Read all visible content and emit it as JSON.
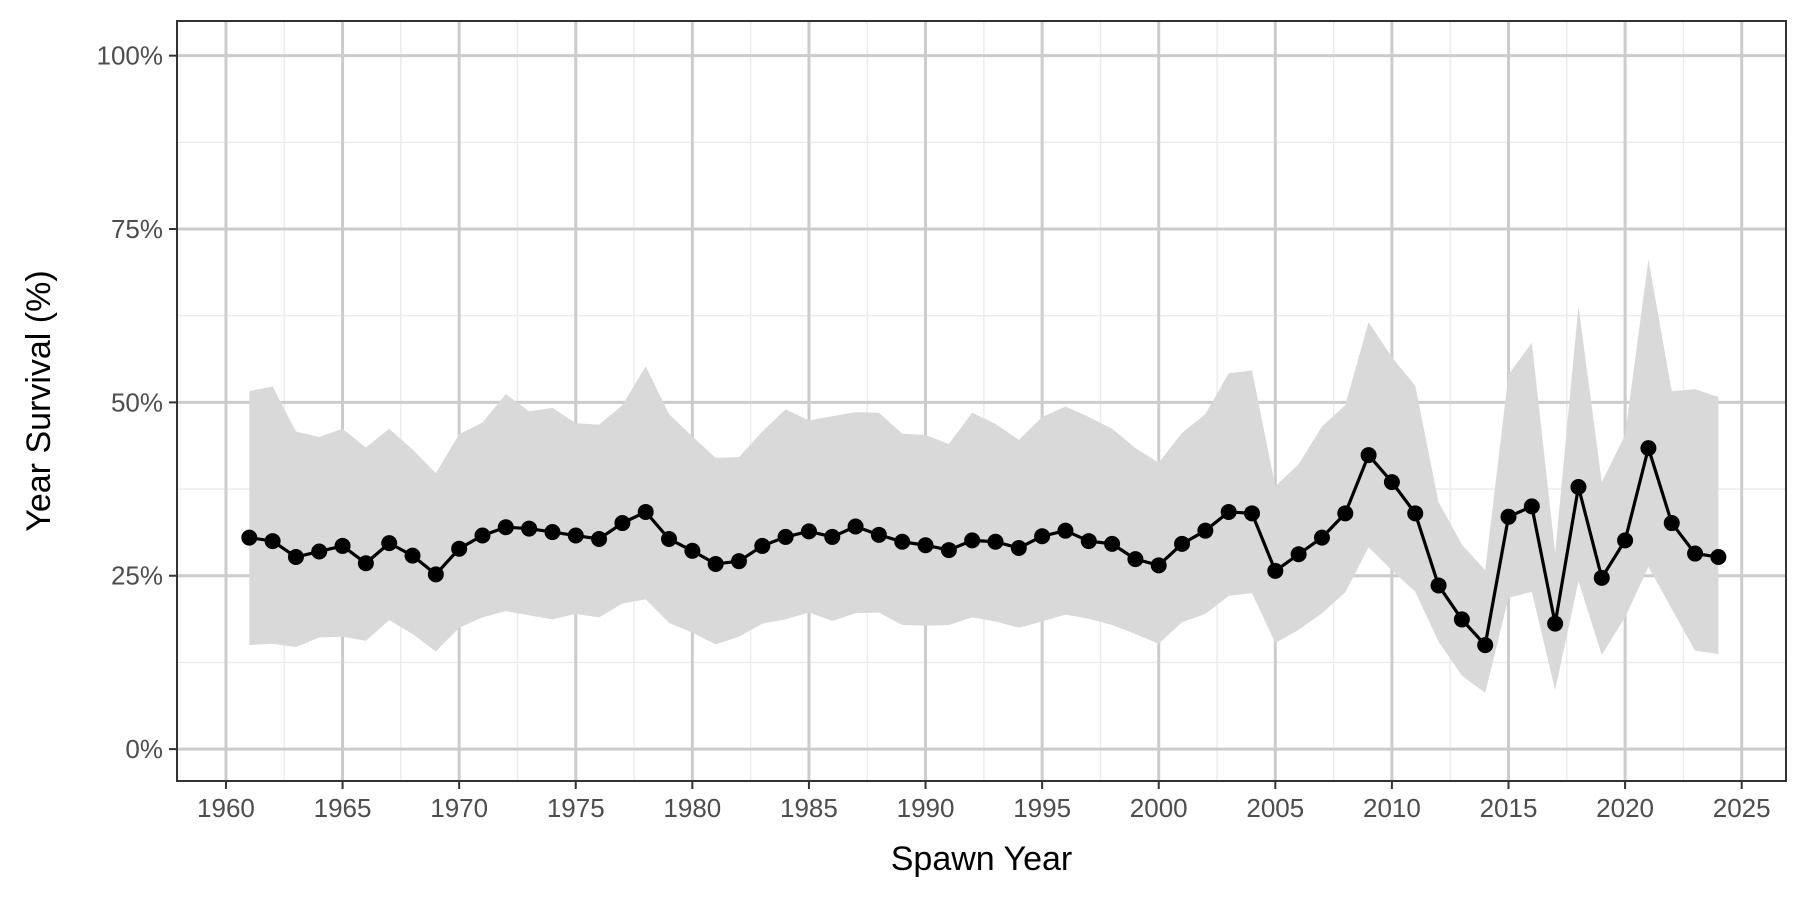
{
  "chart_data": {
    "type": "line",
    "title": "",
    "xlabel": "Spawn Year",
    "ylabel": "Year Survival (%)",
    "xlim": [
      1957.9,
      2026.9
    ],
    "ylim": [
      -4.6,
      105.0
    ],
    "x_ticks": [
      1960,
      1965,
      1970,
      1975,
      1980,
      1985,
      1990,
      1995,
      2000,
      2005,
      2010,
      2015,
      2020,
      2025
    ],
    "x_tick_labels": [
      "1960",
      "1965",
      "1970",
      "1975",
      "1980",
      "1985",
      "1990",
      "1995",
      "2000",
      "2005",
      "2010",
      "2015",
      "2020",
      "2025"
    ],
    "y_ticks": [
      0,
      25,
      50,
      75,
      100
    ],
    "y_tick_labels": [
      "0%",
      "25%",
      "50%",
      "75%",
      "100%"
    ],
    "grid": true,
    "legend": "none",
    "colors": {
      "line": "#000000",
      "ribbon": "#d9d9d9",
      "grid_major": "#cccccc",
      "grid_minor": "#ebebeb",
      "panel_border": "#333333"
    },
    "x": [
      1961,
      1962,
      1963,
      1964,
      1965,
      1966,
      1967,
      1968,
      1969,
      1970,
      1971,
      1972,
      1973,
      1974,
      1975,
      1976,
      1977,
      1978,
      1979,
      1980,
      1981,
      1982,
      1983,
      1984,
      1985,
      1986,
      1987,
      1988,
      1989,
      1990,
      1991,
      1992,
      1993,
      1994,
      1995,
      1996,
      1997,
      1998,
      1999,
      2000,
      2001,
      2002,
      2003,
      2004,
      2005,
      2006,
      2007,
      2008,
      2009,
      2010,
      2011,
      2012,
      2013,
      2014,
      2015,
      2016,
      2017,
      2018,
      2019,
      2020,
      2021,
      2022,
      2023,
      2024
    ],
    "series": [
      {
        "values": [
          30.5,
          30.0,
          27.7,
          28.5,
          29.3,
          26.8,
          29.7,
          27.9,
          25.2,
          28.9,
          30.8,
          32.0,
          31.8,
          31.3,
          30.8,
          30.3,
          32.6,
          34.2,
          30.3,
          28.6,
          26.7,
          27.1,
          29.3,
          30.6,
          31.4,
          30.6,
          32.1,
          30.9,
          29.9,
          29.4,
          28.7,
          30.1,
          29.9,
          29.0,
          30.7,
          31.5,
          30.0,
          29.6,
          27.4,
          26.5,
          29.6,
          31.5,
          34.2,
          34.0,
          25.7,
          28.1,
          30.5,
          34.0,
          42.4,
          38.5,
          34.0,
          23.6,
          18.7,
          15.0,
          33.5,
          35.0,
          18.1,
          37.8,
          24.7,
          30.1,
          43.4,
          32.6,
          28.2,
          27.7
        ],
        "lower": [
          15.0,
          15.2,
          14.7,
          16.1,
          16.2,
          15.6,
          18.6,
          16.6,
          14.1,
          17.5,
          19.0,
          19.9,
          19.3,
          18.7,
          19.5,
          19.0,
          21.0,
          21.6,
          18.2,
          16.8,
          15.1,
          16.2,
          18.1,
          18.7,
          19.7,
          18.5,
          19.6,
          19.7,
          17.9,
          17.8,
          17.9,
          19.0,
          18.4,
          17.5,
          18.4,
          19.4,
          18.8,
          17.9,
          16.6,
          15.2,
          18.3,
          19.5,
          22.1,
          22.5,
          15.3,
          17.2,
          19.6,
          22.6,
          29.1,
          25.8,
          22.7,
          15.5,
          10.6,
          8.1,
          21.8,
          22.7,
          8.5,
          24.2,
          13.6,
          19.0,
          26.3,
          20.2,
          14.2,
          13.7
        ],
        "upper": [
          51.6,
          52.3,
          45.8,
          45.0,
          46.2,
          43.5,
          46.2,
          43.2,
          39.8,
          45.4,
          47.1,
          51.2,
          48.7,
          49.2,
          47.0,
          46.8,
          49.6,
          55.2,
          48.3,
          45.1,
          42.0,
          42.1,
          45.8,
          49.0,
          47.4,
          48.0,
          48.6,
          48.5,
          45.5,
          45.3,
          44.0,
          48.5,
          46.9,
          44.6,
          47.9,
          49.4,
          47.9,
          46.2,
          43.4,
          41.3,
          45.6,
          48.3,
          54.2,
          54.6,
          37.9,
          41.1,
          46.5,
          49.6,
          61.6,
          56.5,
          52.4,
          35.6,
          29.5,
          25.8,
          54.0,
          58.6,
          28.3,
          63.9,
          38.5,
          45.3,
          70.6,
          51.6,
          51.9,
          50.8
        ]
      }
    ]
  }
}
